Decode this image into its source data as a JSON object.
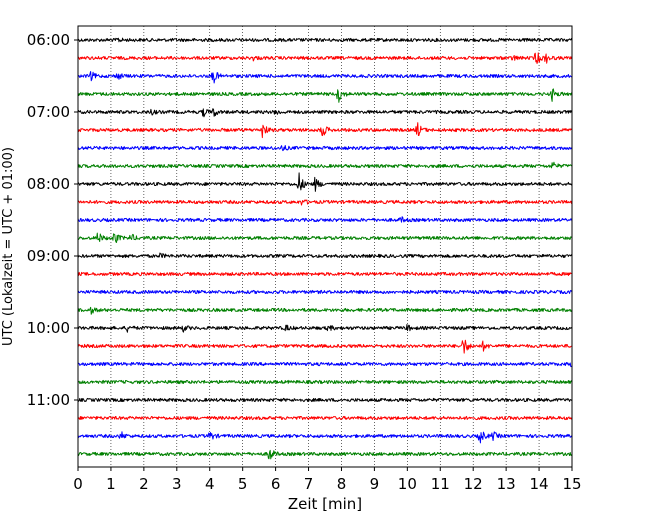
{
  "chart_data": {
    "type": "line",
    "title": "",
    "xlabel": "Zeit  [min]",
    "ylabel": "UTC (Lokalzeit = UTC + 01:00)",
    "xlim": [
      0,
      15
    ],
    "x_ticks": [
      "0",
      "1",
      "2",
      "3",
      "4",
      "5",
      "6",
      "7",
      "8",
      "9",
      "10",
      "11",
      "12",
      "13",
      "14",
      "15"
    ],
    "y_ticks": [
      "06:00",
      "07:00",
      "08:00",
      "09:00",
      "10:00",
      "11:00"
    ],
    "grid": "vertical dotted",
    "colors": [
      "#000000",
      "#ff0000",
      "#0000ff",
      "#008000"
    ],
    "traces": [
      {
        "start": "06:00",
        "color": "#000000",
        "events": [
          [
            1.2,
            0.15
          ]
        ]
      },
      {
        "start": "06:15",
        "color": "#ff0000",
        "events": [
          [
            5.3,
            0.15
          ],
          [
            13.2,
            0.2
          ],
          [
            13.9,
            0.6
          ],
          [
            14.2,
            0.35
          ]
        ]
      },
      {
        "start": "06:30",
        "color": "#0000ff",
        "events": [
          [
            0.4,
            0.3
          ],
          [
            1.2,
            0.25
          ],
          [
            4.1,
            0.6
          ]
        ]
      },
      {
        "start": "06:45",
        "color": "#008000",
        "events": [
          [
            7.9,
            0.7
          ],
          [
            14.4,
            0.45
          ]
        ]
      },
      {
        "start": "07:00",
        "color": "#000000",
        "events": [
          [
            2.2,
            0.2
          ],
          [
            3.8,
            0.3
          ],
          [
            4.1,
            0.35
          ],
          [
            6.0,
            0.2
          ]
        ]
      },
      {
        "start": "07:15",
        "color": "#ff0000",
        "events": [
          [
            5.6,
            0.55
          ],
          [
            7.4,
            0.65
          ],
          [
            10.3,
            0.6
          ]
        ]
      },
      {
        "start": "07:30",
        "color": "#0000ff",
        "events": [
          [
            6.2,
            0.2
          ]
        ]
      },
      {
        "start": "07:45",
        "color": "#008000",
        "events": [
          [
            14.4,
            0.3
          ]
        ]
      },
      {
        "start": "08:00",
        "color": "#000000",
        "events": [
          [
            6.7,
            0.9
          ],
          [
            7.2,
            0.5
          ]
        ]
      },
      {
        "start": "08:15",
        "color": "#ff0000",
        "events": [
          [
            6.8,
            0.2
          ]
        ]
      },
      {
        "start": "08:30",
        "color": "#0000ff",
        "events": [
          [
            9.8,
            0.2
          ]
        ]
      },
      {
        "start": "08:45",
        "color": "#008000",
        "events": [
          [
            0.6,
            0.45
          ],
          [
            1.1,
            0.5
          ],
          [
            1.6,
            0.3
          ]
        ]
      },
      {
        "start": "09:00",
        "color": "#000000",
        "events": [
          [
            2.5,
            0.15
          ]
        ]
      },
      {
        "start": "09:15",
        "color": "#ff0000",
        "events": []
      },
      {
        "start": "09:30",
        "color": "#0000ff",
        "events": []
      },
      {
        "start": "09:45",
        "color": "#008000",
        "events": [
          [
            0.4,
            0.2
          ]
        ]
      },
      {
        "start": "10:00",
        "color": "#000000",
        "events": [
          [
            1.5,
            0.2
          ],
          [
            3.2,
            0.2
          ],
          [
            6.3,
            0.2
          ],
          [
            7.6,
            0.2
          ],
          [
            10.0,
            0.2
          ]
        ]
      },
      {
        "start": "10:15",
        "color": "#ff0000",
        "events": [
          [
            11.7,
            0.8
          ],
          [
            12.3,
            0.3
          ]
        ]
      },
      {
        "start": "10:30",
        "color": "#0000ff",
        "events": [
          [
            15.0,
            0.3
          ]
        ]
      },
      {
        "start": "10:45",
        "color": "#008000",
        "events": []
      },
      {
        "start": "11:00",
        "color": "#000000",
        "events": []
      },
      {
        "start": "11:15",
        "color": "#ff0000",
        "events": []
      },
      {
        "start": "11:30",
        "color": "#0000ff",
        "events": [
          [
            1.3,
            0.3
          ],
          [
            4.0,
            0.35
          ],
          [
            12.2,
            0.6
          ],
          [
            12.6,
            0.3
          ]
        ]
      },
      {
        "start": "11:45",
        "color": "#008000",
        "events": [
          [
            5.8,
            0.6
          ]
        ]
      }
    ]
  }
}
